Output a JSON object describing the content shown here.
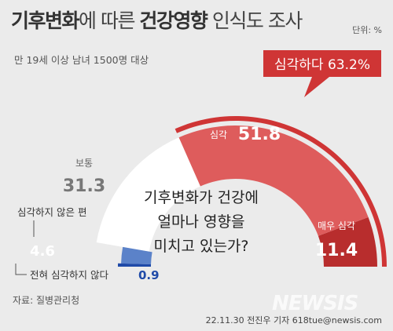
{
  "header": {
    "title_bold_1": "기후변화",
    "title_normal_1": "에 따른 ",
    "title_bold_2": "건강영향",
    "title_normal_2": " 인식도 조사",
    "unit": "단위: %",
    "subtitle": "만 19세 이상 남녀 1500명 대상"
  },
  "footer": {
    "source": "자료: 질병관리청",
    "credit": "22.11.30 전진우 기자 618tue@newsis.com",
    "watermark": "NEWSIS"
  },
  "colors": {
    "serious": "#de5c5c",
    "very_serious": "#b82d2d",
    "moderate": "#ffffff",
    "not_serious": "#5b82c9",
    "not_at_all": "#1f4aa8",
    "callout_bg": "#cf3535"
  },
  "chart_data": {
    "type": "pie",
    "subtype": "semi-donut",
    "center_question": [
      "기후변화가 건강에",
      "얼마나 영향을",
      "미치고 있는가?"
    ],
    "callout": {
      "label": "심각하다 63.2%",
      "total": 63.2
    },
    "slices": [
      {
        "key": "very_serious",
        "label": "매우 심각",
        "value": 11.4
      },
      {
        "key": "serious",
        "label": "심각",
        "value": 51.8
      },
      {
        "key": "moderate",
        "label": "보통",
        "value": 31.3
      },
      {
        "key": "not_serious",
        "label": "심각하지 않은 편",
        "value": 4.6
      },
      {
        "key": "not_at_all",
        "label": "전혀 심각하지 않다",
        "value": 0.9
      }
    ]
  }
}
